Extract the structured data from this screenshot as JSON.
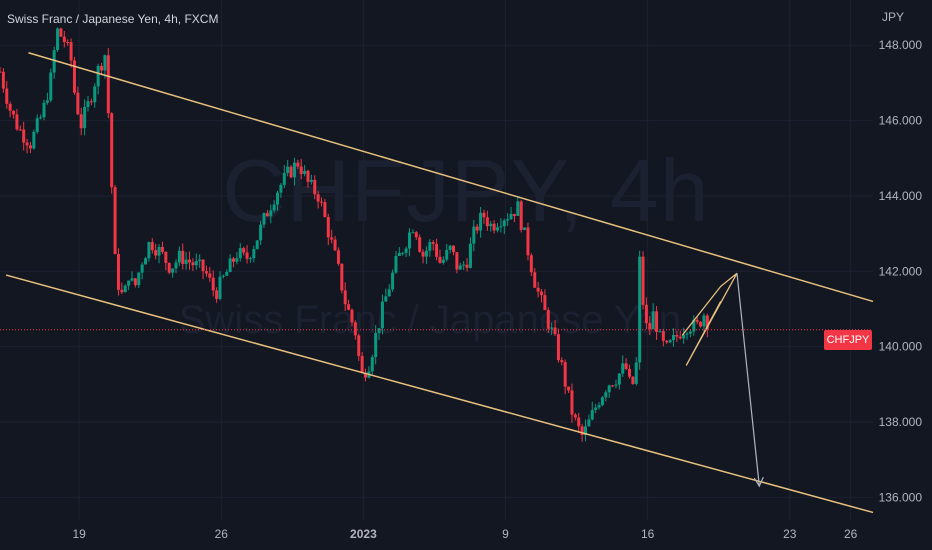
{
  "header": {
    "title": "Swiss Franc / Japanese Yen, 4h, FXCM",
    "unit": "JPY"
  },
  "watermark": {
    "symbol": "CHFJPY, 4h",
    "name": "Swiss Franc / Japanese Yen"
  },
  "last_price_label": "CHFJPY",
  "colors": {
    "background": "#131722",
    "up": "#089981",
    "down": "#f23645",
    "channel": "#e8c07d",
    "projection": "#b2b5be",
    "grid": "#1c2130"
  },
  "chart_data": {
    "type": "candlestick",
    "title": "Swiss Franc / Japanese Yen, 4h, FXCM",
    "ylabel": "JPY",
    "ylim": [
      135.4,
      149.2
    ],
    "y_ticks": [
      "148.000",
      "146.000",
      "144.000",
      "142.000",
      "140.000",
      "138.000",
      "136.000"
    ],
    "y_tick_values": [
      148,
      146,
      144,
      142,
      140,
      138,
      136
    ],
    "x_ticks": [
      "19",
      "26",
      "2023",
      "9",
      "16",
      "23",
      "26"
    ],
    "x_tick_days": [
      19,
      26,
      33,
      40,
      47,
      54,
      57
    ],
    "x_day_range": [
      15.1,
      58.1
    ],
    "last_price": 140.45,
    "path_points": [
      [
        15.1,
        147.3
      ],
      [
        15.6,
        146.3
      ],
      [
        16.0,
        145.8
      ],
      [
        16.6,
        145.4
      ],
      [
        17.2,
        146.2
      ],
      [
        17.6,
        147.1
      ],
      [
        17.9,
        148.4
      ],
      [
        18.3,
        148.1
      ],
      [
        18.6,
        147.6
      ],
      [
        18.8,
        146.6
      ],
      [
        19.1,
        145.9
      ],
      [
        19.5,
        146.5
      ],
      [
        19.9,
        147.3
      ],
      [
        20.3,
        147.8
      ],
      [
        20.8,
        141.9
      ],
      [
        21.2,
        141.2
      ],
      [
        21.4,
        142.0
      ],
      [
        21.7,
        141.5
      ],
      [
        22.1,
        142.3
      ],
      [
        22.5,
        142.8
      ],
      [
        23.0,
        142.5
      ],
      [
        23.5,
        142.1
      ],
      [
        24.0,
        142.4
      ],
      [
        24.6,
        142.2
      ],
      [
        25.2,
        142.0
      ],
      [
        25.7,
        141.4
      ],
      [
        26.2,
        141.9
      ],
      [
        26.8,
        142.5
      ],
      [
        27.2,
        142.3
      ],
      [
        27.7,
        142.8
      ],
      [
        28.2,
        143.5
      ],
      [
        28.7,
        144.1
      ],
      [
        29.3,
        144.6
      ],
      [
        29.8,
        144.9
      ],
      [
        30.3,
        144.3
      ],
      [
        30.8,
        144.0
      ],
      [
        31.2,
        143.2
      ],
      [
        31.7,
        142.2
      ],
      [
        32.1,
        141.2
      ],
      [
        32.6,
        140.4
      ],
      [
        32.9,
        139.2
      ],
      [
        33.3,
        139.6
      ],
      [
        33.7,
        140.5
      ],
      [
        34.1,
        141.3
      ],
      [
        34.6,
        142.2
      ],
      [
        35.1,
        142.8
      ],
      [
        35.5,
        143.3
      ],
      [
        35.9,
        142.4
      ],
      [
        36.4,
        142.8
      ],
      [
        36.8,
        142.2
      ],
      [
        37.3,
        142.6
      ],
      [
        37.7,
        142.0
      ],
      [
        38.1,
        142.3
      ],
      [
        38.5,
        143.1
      ],
      [
        38.9,
        143.5
      ],
      [
        39.3,
        143.2
      ],
      [
        39.7,
        143.4
      ],
      [
        40.1,
        143.5
      ],
      [
        40.6,
        143.7
      ],
      [
        41.0,
        142.8
      ],
      [
        41.5,
        141.6
      ],
      [
        42.0,
        140.8
      ],
      [
        42.4,
        140.2
      ],
      [
        42.8,
        139.4
      ],
      [
        43.2,
        138.4
      ],
      [
        43.5,
        137.9
      ],
      [
        43.8,
        137.6
      ],
      [
        44.2,
        138.1
      ],
      [
        44.6,
        138.6
      ],
      [
        45.0,
        139.0
      ],
      [
        45.5,
        139.2
      ],
      [
        45.9,
        139.5
      ],
      [
        46.2,
        138.8
      ],
      [
        46.5,
        139.7
      ],
      [
        46.6,
        142.3
      ],
      [
        46.8,
        141.0
      ],
      [
        47.0,
        140.3
      ],
      [
        47.3,
        140.9
      ],
      [
        47.6,
        140.2
      ],
      [
        47.9,
        139.9
      ],
      [
        48.2,
        140.1
      ],
      [
        48.6,
        140.4
      ],
      [
        49.0,
        140.6
      ],
      [
        49.4,
        140.5
      ],
      [
        49.8,
        140.9
      ],
      [
        50.0,
        140.6
      ]
    ],
    "annotations": {
      "channel_upper": {
        "from": [
          16.5,
          147.8
        ],
        "to": [
          58.1,
          141.2
        ]
      },
      "channel_lower": {
        "from": [
          15.4,
          141.9
        ],
        "to": [
          58.1,
          135.6
        ]
      },
      "rising_wedge": [
        [
          48.7,
          140.3
        ],
        [
          50.6,
          141.6
        ],
        [
          51.4,
          141.95
        ],
        [
          48.9,
          139.5
        ],
        [
          50.6,
          141.2
        ]
      ],
      "projection": {
        "from": [
          51.4,
          141.95
        ],
        "to": [
          52.5,
          136.3
        ]
      }
    }
  }
}
